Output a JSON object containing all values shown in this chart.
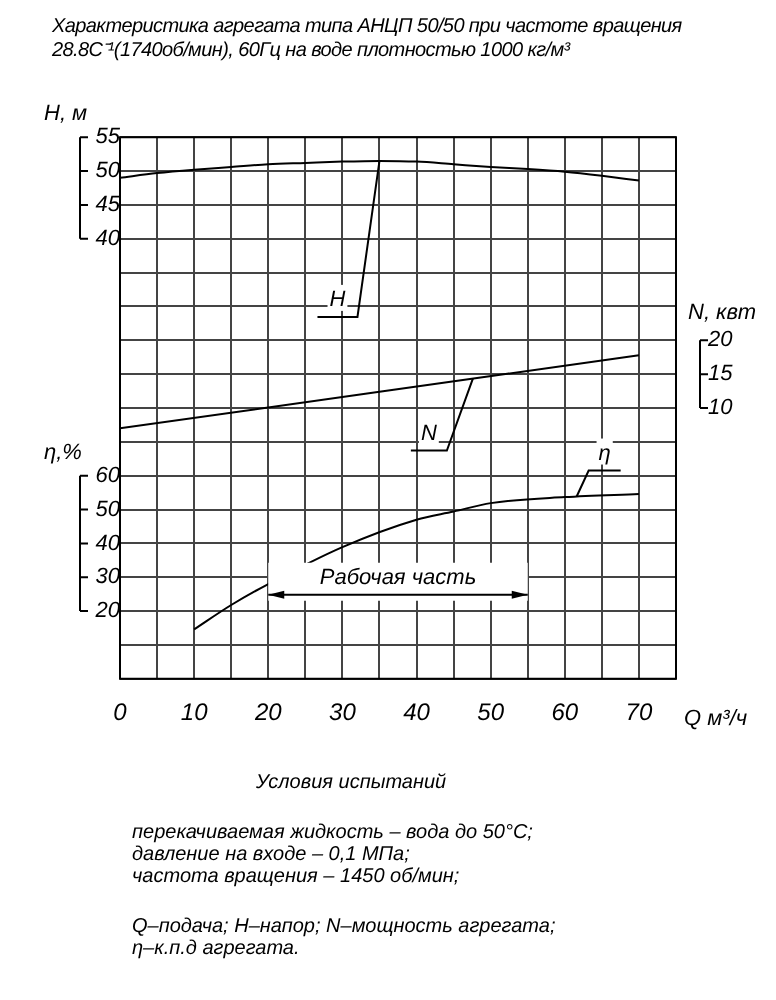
{
  "chart_data": {
    "type": "line",
    "title": "Характеристика агрегата типа АНЦП 50/50 при частоте вращения",
    "subtitle": "28.8С⁻¹(1740об/мин), 60Гц на воде плотностью 1000 кг/м³",
    "xlabel": "Q м³/ч",
    "ylabel": "H, м",
    "y2label": "N, квт",
    "y3label": "η,%",
    "xlim": [
      0,
      75
    ],
    "xticks": [
      0,
      {
        "value": 5,
        "label": null
      },
      10,
      {
        "value": 15,
        "label": null
      },
      20,
      {
        "value": 25,
        "label": null
      },
      30,
      {
        "value": 35,
        "label": null
      },
      40,
      {
        "value": 45,
        "label": null
      },
      50,
      {
        "value": 55,
        "label": null
      },
      60,
      {
        "value": 65,
        "label": null
      },
      70,
      {
        "value": 75,
        "label": null
      }
    ],
    "ylim": [
      -25,
      55
    ],
    "yticks": [
      {
        "value": -25,
        "label": null
      },
      {
        "value": -20,
        "label": null
      },
      {
        "value": -15,
        "label": null
      },
      {
        "value": -10,
        "label": null
      },
      {
        "value": -5,
        "label": null
      },
      {
        "value": 0,
        "label": null
      },
      {
        "value": 5,
        "label": null
      },
      {
        "value": 10,
        "label": null
      },
      {
        "value": 15,
        "label": null
      },
      {
        "value": 20,
        "label": null
      },
      {
        "value": 25,
        "label": null
      },
      {
        "value": 30,
        "label": null
      },
      {
        "value": 35,
        "label": null
      },
      40,
      45,
      50,
      55
    ],
    "y2lim": [
      -30,
      50
    ],
    "y2ticks": [
      10,
      15,
      20
    ],
    "y3lim": [
      0,
      160
    ],
    "y3ticks": [
      20,
      30,
      40,
      50,
      60
    ],
    "grid": true,
    "marker": "none",
    "line_style": "solid",
    "series": [
      {
        "name": "H",
        "color": "#000000",
        "x": [
          0,
          5,
          10,
          15,
          20,
          25,
          30,
          35,
          40,
          45,
          50,
          55,
          60,
          65,
          70
        ],
        "values": [
          49,
          49.7,
          50.2,
          50.6,
          51,
          51.2,
          51.4,
          51.5,
          51.4,
          51,
          50.6,
          50.3,
          49.9,
          49.3,
          48.6
        ]
      },
      {
        "name": "N",
        "color": "#000000",
        "axis": "y2",
        "x": [
          0,
          35,
          70
        ],
        "values": [
          7,
          12.4,
          17.8
        ]
      },
      {
        "name": "η",
        "color": "#000000",
        "axis": "y3",
        "x": [
          10,
          15,
          20,
          30,
          40,
          45,
          50,
          60,
          70
        ],
        "values": [
          14.6,
          21.8,
          28,
          38.9,
          47,
          49.4,
          51.9,
          53.7,
          54.6
        ]
      }
    ],
    "bands": [
      {
        "axis": "x",
        "from": 20,
        "to": 55,
        "label": "Рабочая часть"
      }
    ],
    "annotations": [
      "Условия испытаний",
      "перекачиваемая жидкость – вода до 50°С;",
      "давление на входе – 0,1 МПа;",
      "частота вращения – 1450 об/мин;",
      "Q–подача; H–напор; N–мощность агрегата;",
      "η–к.п.д агрегата."
    ]
  }
}
